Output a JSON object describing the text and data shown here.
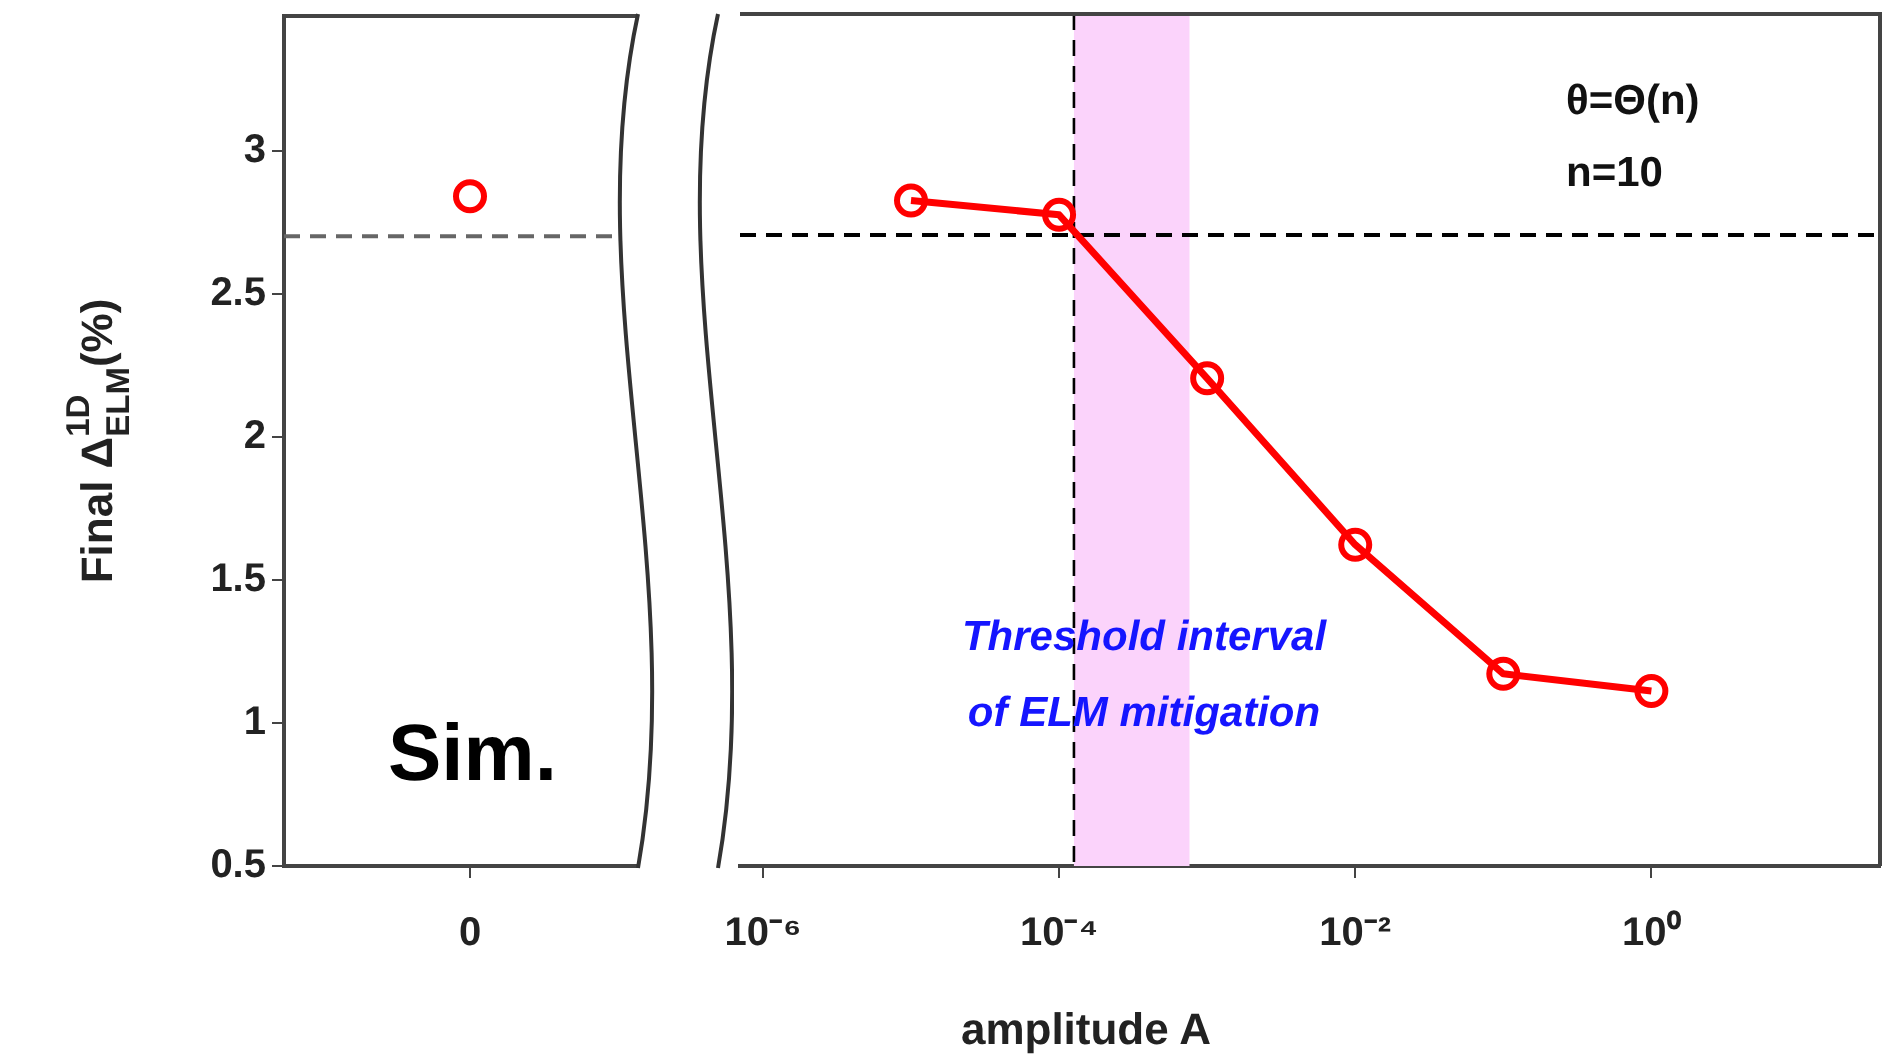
{
  "chart_data": [
    {
      "type": "line",
      "ylabel": "Final Δ$^{1D}$$_{ELM}$(%)",
      "categories": [
        "0"
      ],
      "series": [
        {
          "color": "#ff0000",
          "values": [
            2.84
          ]
        }
      ],
      "ylim": [
        0.5,
        3.47
      ],
      "yticks": [
        0.5,
        1,
        1.5,
        2,
        2.5,
        3
      ],
      "grid": false,
      "marker": "circle",
      "line_style": "solid",
      "ref_lines": [
        {
          "axis": "y",
          "value": 2.7,
          "color": "#666666",
          "line_style": "dashed"
        }
      ],
      "annotations": [
        "Sim."
      ]
    },
    {
      "type": "line",
      "xlabel": "amplitude A",
      "x": [
        1e-05,
        0.0001,
        0.001,
        0.01,
        0.1,
        1
      ],
      "log": "x",
      "series": [
        {
          "color": "#ff0000",
          "values": [
            2.82,
            2.77,
            2.2,
            1.62,
            1.17,
            1.11
          ]
        }
      ],
      "xlim": [
        7e-07,
        35
      ],
      "xticks": [
        {
          "value": 1e-06,
          "label": "10⁻⁶"
        },
        {
          "value": 0.0001,
          "label": "10⁻⁴"
        },
        {
          "value": 0.01,
          "label": "10⁻²"
        },
        {
          "value": 1,
          "label": "10⁰"
        }
      ],
      "ylim": [
        0.5,
        3.47
      ],
      "yticks": [
        0.5,
        1,
        1.5,
        2,
        2.5,
        3
      ],
      "tick_labels": "x",
      "grid": false,
      "marker": "circle",
      "line_style": "solid",
      "ref_lines": [
        {
          "axis": "y",
          "value": 2.7,
          "color": "#000000",
          "line_style": "dashed"
        },
        {
          "axis": "x",
          "value": 0.000126,
          "color": "#000000",
          "line_style": "dashed"
        }
      ],
      "bands": [
        {
          "axis": "x",
          "from": 0.000126,
          "to": 0.00076,
          "color": "#fbd3fb"
        }
      ],
      "annotations": [
        "θ=Θ(n)",
        "n=10",
        "Threshold interval",
        "of ELM mitigation"
      ]
    }
  ]
}
